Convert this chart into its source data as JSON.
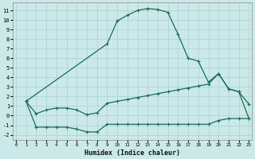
{
  "title": "",
  "xlabel": "Humidex (Indice chaleur)",
  "ylabel": "",
  "bg_color": "#cce9e9",
  "grid_color": "#aed4d4",
  "line_color": "#1a6b5a",
  "xlim": [
    -0.3,
    23.3
  ],
  "ylim": [
    -2.5,
    11.8
  ],
  "xticks": [
    0,
    1,
    2,
    3,
    4,
    5,
    6,
    7,
    8,
    9,
    10,
    11,
    12,
    13,
    14,
    15,
    16,
    17,
    18,
    19,
    20,
    21,
    22,
    23
  ],
  "yticks": [
    -2,
    -1,
    0,
    1,
    2,
    3,
    4,
    5,
    6,
    7,
    8,
    9,
    10,
    11
  ],
  "line1_x": [
    1,
    2,
    3,
    4,
    5,
    6,
    7,
    8,
    9,
    10,
    11,
    12,
    13,
    14,
    15,
    16,
    17,
    18,
    19,
    20,
    21,
    22,
    23
  ],
  "line1_y": [
    1.5,
    -1.2,
    -1.2,
    -1.2,
    -1.2,
    -1.4,
    -1.7,
    -1.7,
    -0.9,
    -0.9,
    -0.9,
    -0.9,
    -0.9,
    -0.9,
    -0.9,
    -0.9,
    -0.9,
    -0.9,
    -0.9,
    -0.5,
    -0.3,
    -0.3,
    -0.3
  ],
  "line2_x": [
    1,
    2,
    3,
    4,
    5,
    6,
    7,
    8,
    9,
    10,
    11,
    12,
    13,
    14,
    15,
    16,
    17,
    18,
    19,
    20,
    21,
    22,
    23
  ],
  "line2_y": [
    1.5,
    0.2,
    0.6,
    0.8,
    0.8,
    0.6,
    0.1,
    0.3,
    1.3,
    1.5,
    1.7,
    1.9,
    2.1,
    2.3,
    2.5,
    2.7,
    2.9,
    3.1,
    3.3,
    4.4,
    2.8,
    2.5,
    1.2
  ],
  "line3_x": [
    1,
    9,
    10,
    11,
    12,
    13,
    14,
    15,
    16,
    17,
    18,
    19,
    20,
    21,
    22,
    23
  ],
  "line3_y": [
    1.5,
    7.5,
    9.9,
    10.5,
    11.0,
    11.2,
    11.1,
    10.8,
    8.5,
    6.0,
    5.7,
    3.5,
    4.4,
    2.8,
    2.5,
    -0.3
  ]
}
